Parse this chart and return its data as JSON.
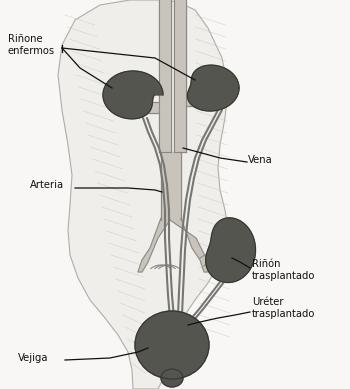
{
  "bg_color": "#f0efeb",
  "body_fill": "#e8e4dc",
  "body_outline": "#b0aca4",
  "body_shadow": "#c8c4bc",
  "organ_color": "#555550",
  "organ_edge": "#333330",
  "vessel_fill": "#c8c4bc",
  "vessel_edge": "#888884",
  "tube_color": "#666662",
  "line_color": "#111111",
  "text_color": "#111111",
  "labels": {
    "enfermo": "Riñone\nenfermos",
    "arteria": "Arteria",
    "vena": "Vena",
    "transplantado": "Riñón\ntrasplantado",
    "ureter": "Uréter\ntrasplantado",
    "vejiga": "Vejiga"
  },
  "figsize": [
    3.5,
    3.89
  ],
  "dpi": 100
}
